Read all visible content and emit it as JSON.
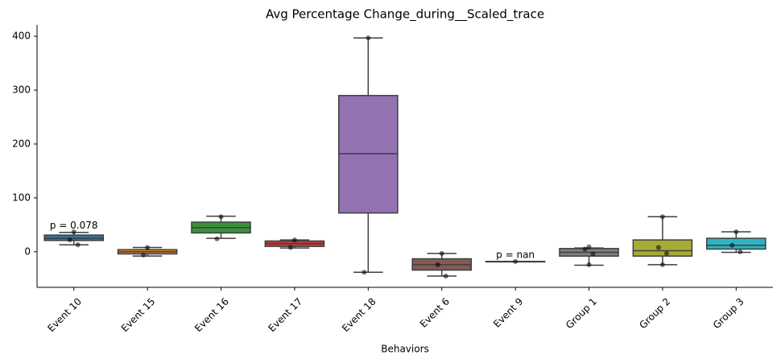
{
  "chart_data": {
    "type": "box",
    "title": "Avg Percentage Change_during__Scaled_trace",
    "x_label": "Behaviors",
    "ylim": [
      -66,
      421
    ],
    "yticks": [
      0,
      100,
      200,
      300,
      400
    ],
    "boxes": [
      {
        "name": "Event 10",
        "color": "#3274a1",
        "whisker_low": 13,
        "q1": 21,
        "median": 25,
        "q3": 31,
        "whisker_high": 36,
        "points": [
          37,
          22,
          13
        ],
        "annotation": "p = 0.078"
      },
      {
        "name": "Event 15",
        "color": "#e1812c",
        "whisker_low": -8,
        "q1": -4,
        "median": 0,
        "q3": 4,
        "whisker_high": 8,
        "points": [
          8,
          -6
        ]
      },
      {
        "name": "Event 16",
        "color": "#3a923a",
        "whisker_low": 25,
        "q1": 35,
        "median": 45,
        "q3": 55,
        "whisker_high": 66,
        "points": [
          65,
          24
        ]
      },
      {
        "name": "Event 17",
        "color": "#c03d3e",
        "whisker_low": 7,
        "q1": 10,
        "median": 15,
        "q3": 20,
        "whisker_high": 22,
        "points": [
          22,
          8
        ]
      },
      {
        "name": "Event 18",
        "color": "#9372b2",
        "whisker_low": -38,
        "q1": 72,
        "median": 182,
        "q3": 290,
        "whisker_high": 397,
        "points": [
          397,
          -38
        ]
      },
      {
        "name": "Event 6",
        "color": "#845b53",
        "whisker_low": -45,
        "q1": -34,
        "median": -24,
        "q3": -13,
        "whisker_high": -3,
        "points": [
          -3,
          -24,
          -45
        ]
      },
      {
        "name": "Event 9",
        "color": "#d684bd",
        "whisker_low": -18,
        "q1": -18,
        "median": -18,
        "q3": -18,
        "whisker_high": -18,
        "points": [
          -18
        ],
        "annotation": "p = nan"
      },
      {
        "name": "Group 1",
        "color": "#7f7f7f",
        "whisker_low": -25,
        "q1": -8,
        "median": -1,
        "q3": 6,
        "whisker_high": 7,
        "points": [
          9,
          5,
          -4,
          -24
        ]
      },
      {
        "name": "Group 2",
        "color": "#a9aa35",
        "whisker_low": -24,
        "q1": -8,
        "median": 2,
        "q3": 22,
        "whisker_high": 65,
        "points": [
          65,
          8,
          -3,
          -24
        ]
      },
      {
        "name": "Group 3",
        "color": "#2eb3c2",
        "whisker_low": -1,
        "q1": 5,
        "median": 12,
        "q3": 25,
        "whisker_high": 37,
        "points": [
          37,
          12,
          0
        ]
      }
    ]
  }
}
